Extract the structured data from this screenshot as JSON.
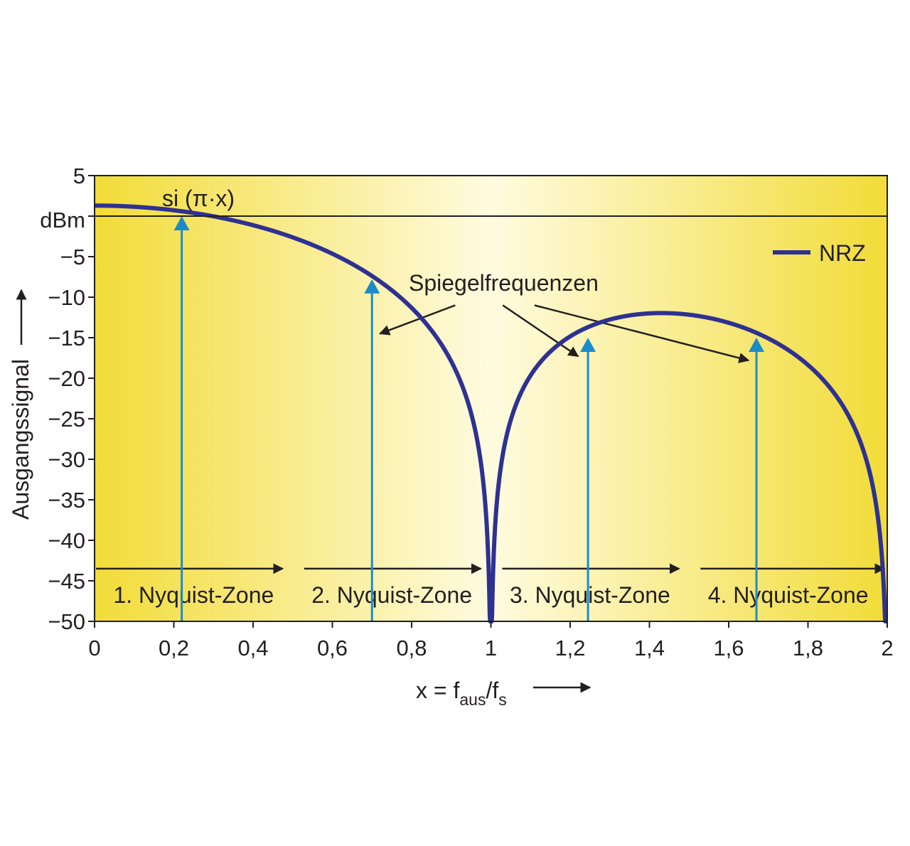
{
  "chart_data": {
    "type": "line",
    "title": "",
    "xlabel": "x = f",
    "xlabel_sub1": "aus",
    "xlabel_mid": "/f",
    "xlabel_sub2": "s",
    "ylabel": "Ausgangssignal",
    "y_unit": "dBm",
    "xlim": [
      0,
      2
    ],
    "ylim": [
      -50,
      5
    ],
    "x_ticks": [
      "0",
      "0,2",
      "0,4",
      "0,6",
      "0,8",
      "1",
      "1,2",
      "1,4",
      "1,6",
      "1,8",
      "2"
    ],
    "x_tick_values": [
      0,
      0.2,
      0.4,
      0.6,
      0.8,
      1.0,
      1.2,
      1.4,
      1.6,
      1.8,
      2.0
    ],
    "y_ticks": [
      "5",
      "",
      "−5",
      "−10",
      "−15",
      "−20",
      "−25",
      "−30",
      "−35",
      "−40",
      "−45",
      "−50"
    ],
    "y_tick_values": [
      5,
      0,
      -5,
      -10,
      -15,
      -20,
      -25,
      -30,
      -35,
      -40,
      -45,
      -50
    ],
    "reference_line_y": 0,
    "series": [
      {
        "name": "NRZ",
        "color": "#2e3192",
        "function": "1.3 + 20*log10(|sin(pi*x)/(pi*x)|)"
      }
    ],
    "curve_annotation": "si (π·x)",
    "legend": {
      "position": "top-right"
    },
    "arrows": [
      {
        "x": 0.22,
        "y_top": 0,
        "color": "#1a8dc8"
      },
      {
        "x": 0.7,
        "y_top": -7.8,
        "color": "#1a8dc8"
      },
      {
        "x": 1.245,
        "y_top": -15,
        "color": "#1a8dc8"
      },
      {
        "x": 1.67,
        "y_top": -15,
        "color": "#1a8dc8"
      }
    ],
    "annotation": {
      "text": "Spiegelfrequenzen",
      "pointers": [
        {
          "from_x": 0.91,
          "from_y": -11,
          "to_x": 0.72,
          "to_y": -14.5
        },
        {
          "from_x": 1.03,
          "from_y": -11,
          "to_x": 1.22,
          "to_y": -17.3
        },
        {
          "from_x": 1.11,
          "from_y": -11,
          "to_x": 1.65,
          "to_y": -17.8
        }
      ]
    },
    "zones": [
      {
        "label": "1. Nyquist-Zone",
        "from": 0,
        "to": 0.5
      },
      {
        "label": "2. Nyquist-Zone",
        "from": 0.5,
        "to": 1.0
      },
      {
        "label": "3. Nyquist-Zone",
        "from": 1.0,
        "to": 1.5
      },
      {
        "label": "4. Nyquist-Zone",
        "from": 1.5,
        "to": 2.0
      }
    ],
    "zone_arrow_y": -43.5,
    "grid": false,
    "colors": {
      "background_edge": "#f2dc38",
      "background_center": "#fffbe0",
      "curve": "#2e3192",
      "arrow": "#1a8dc8",
      "text": "#231f20"
    }
  }
}
